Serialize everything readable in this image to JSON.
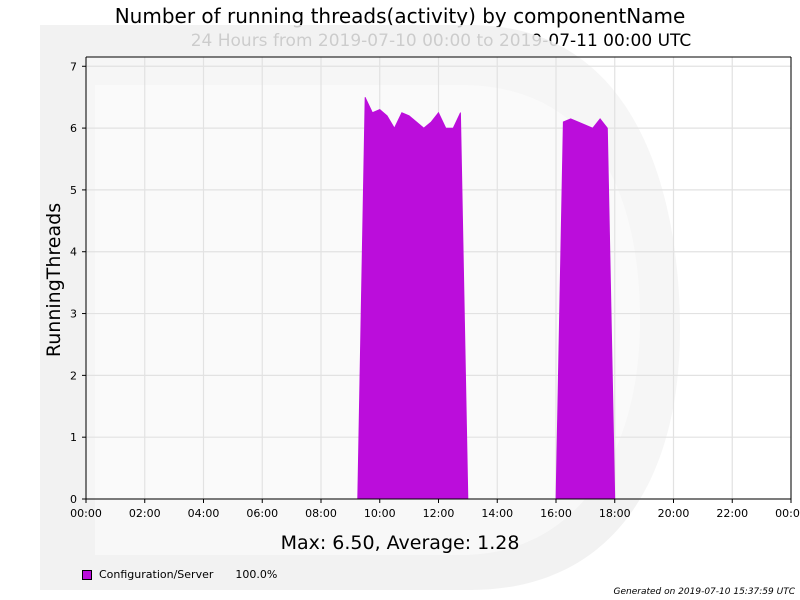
{
  "chart_data": {
    "type": "area",
    "title": "Number of running threads(activity) by componentName",
    "subtitle": "24 Hours from 2019-07-10 00:00 to 2019-07-11 00:00 UTC",
    "ylabel": "RunningThreads",
    "xlabel": "",
    "x_ticks": [
      "00:00",
      "02:00",
      "04:00",
      "06:00",
      "08:00",
      "10:00",
      "12:00",
      "14:00",
      "16:00",
      "18:00",
      "20:00",
      "22:00",
      "00:00"
    ],
    "y_ticks": [
      "0",
      "1",
      "2",
      "3",
      "4",
      "5",
      "6",
      "7"
    ],
    "xlim_hours": [
      0,
      24
    ],
    "ylim": [
      0,
      7.15
    ],
    "grid": true,
    "series": [
      {
        "name": "Configuration/Server",
        "color": "#bb0ddb",
        "points": [
          [
            9.25,
            0
          ],
          [
            9.5,
            6.5
          ],
          [
            9.75,
            6.25
          ],
          [
            10.0,
            6.3
          ],
          [
            10.25,
            6.2
          ],
          [
            10.5,
            6.0
          ],
          [
            10.75,
            6.25
          ],
          [
            11.0,
            6.2
          ],
          [
            11.25,
            6.1
          ],
          [
            11.5,
            6.0
          ],
          [
            11.75,
            6.1
          ],
          [
            12.0,
            6.25
          ],
          [
            12.25,
            6.0
          ],
          [
            12.5,
            6.0
          ],
          [
            12.75,
            6.25
          ],
          [
            13.0,
            0
          ],
          [
            16.0,
            0
          ],
          [
            16.25,
            6.1
          ],
          [
            16.5,
            6.15
          ],
          [
            16.75,
            6.1
          ],
          [
            17.0,
            6.05
          ],
          [
            17.25,
            6.0
          ],
          [
            17.5,
            6.15
          ],
          [
            17.75,
            6.0
          ],
          [
            18.0,
            0
          ]
        ]
      }
    ],
    "summary": "Max: 6.50, Average: 1.28",
    "legend": [
      {
        "label": "Configuration/Server",
        "percent": "100.0%",
        "color": "#bb0ddb"
      }
    ],
    "footer": "Generated on 2019-07-10 15:37:59 UTC"
  }
}
